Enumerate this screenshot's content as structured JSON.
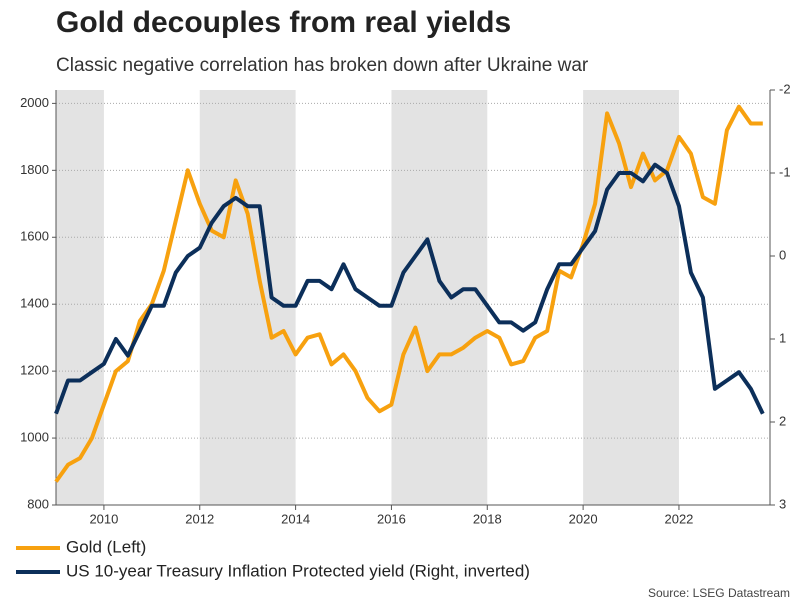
{
  "chart_data": {
    "type": "line",
    "title": "Gold decouples from real yields",
    "subtitle": "Classic negative correlation has broken down after Ukraine war",
    "source": "Source: LSEG Datastream",
    "x": [
      2009,
      2009.25,
      2009.5,
      2009.75,
      2010,
      2010.25,
      2010.5,
      2010.75,
      2011,
      2011.25,
      2011.5,
      2011.75,
      2012,
      2012.25,
      2012.5,
      2012.75,
      2013,
      2013.25,
      2013.5,
      2013.75,
      2014,
      2014.25,
      2014.5,
      2014.75,
      2015,
      2015.25,
      2015.5,
      2015.75,
      2016,
      2016.25,
      2016.5,
      2016.75,
      2017,
      2017.25,
      2017.5,
      2017.75,
      2018,
      2018.25,
      2018.5,
      2018.75,
      2019,
      2019.25,
      2019.5,
      2019.75,
      2020,
      2020.25,
      2020.5,
      2020.75,
      2021,
      2021.25,
      2021.5,
      2021.75,
      2022,
      2022.25,
      2022.5,
      2022.75,
      2023,
      2023.25,
      2023.5,
      2023.75
    ],
    "series": [
      {
        "name": "Gold (Left)",
        "color": "#f7a10f",
        "values": [
          870,
          920,
          940,
          1000,
          1100,
          1200,
          1230,
          1350,
          1400,
          1500,
          1650,
          1800,
          1700,
          1620,
          1600,
          1770,
          1670,
          1470,
          1300,
          1320,
          1250,
          1300,
          1310,
          1220,
          1250,
          1200,
          1120,
          1080,
          1100,
          1250,
          1330,
          1200,
          1250,
          1250,
          1270,
          1300,
          1320,
          1300,
          1220,
          1230,
          1300,
          1320,
          1500,
          1480,
          1580,
          1700,
          1970,
          1880,
          1750,
          1850,
          1770,
          1800,
          1900,
          1850,
          1720,
          1700,
          1920,
          1990,
          1940,
          1940
        ]
      },
      {
        "name": "US 10-year Treasury Inflation Protected yield (Right, inverted)",
        "color": "#0c2f5a",
        "axis": "y2",
        "values": [
          1.9,
          1.5,
          1.5,
          1.4,
          1.3,
          1.0,
          1.2,
          0.9,
          0.6,
          0.6,
          0.2,
          0.0,
          -0.1,
          -0.4,
          -0.6,
          -0.7,
          -0.6,
          -0.6,
          0.5,
          0.6,
          0.6,
          0.3,
          0.3,
          0.4,
          0.1,
          0.4,
          0.5,
          0.6,
          0.6,
          0.2,
          0.0,
          -0.2,
          0.3,
          0.5,
          0.4,
          0.4,
          0.6,
          0.8,
          0.8,
          0.9,
          0.8,
          0.4,
          0.1,
          0.1,
          -0.1,
          -0.3,
          -0.8,
          -1.0,
          -1.0,
          -0.9,
          -1.1,
          -1.0,
          -0.6,
          0.2,
          0.5,
          1.6,
          1.5,
          1.4,
          1.6,
          1.9
        ]
      }
    ],
    "xlim": [
      2009,
      2023.9
    ],
    "xticks": [
      2010,
      2012,
      2014,
      2016,
      2018,
      2020,
      2022
    ],
    "ylim": [
      800,
      2040
    ],
    "yticks": [
      800,
      1000,
      1200,
      1400,
      1600,
      1800,
      2000
    ],
    "y2lim": [
      3,
      -2
    ],
    "y2ticks": [
      -2,
      -1,
      0,
      1,
      2,
      3
    ],
    "shaded_periods": [
      [
        2009,
        2010
      ],
      [
        2012,
        2014
      ],
      [
        2016,
        2018
      ],
      [
        2020,
        2022
      ]
    ],
    "grid": true
  }
}
